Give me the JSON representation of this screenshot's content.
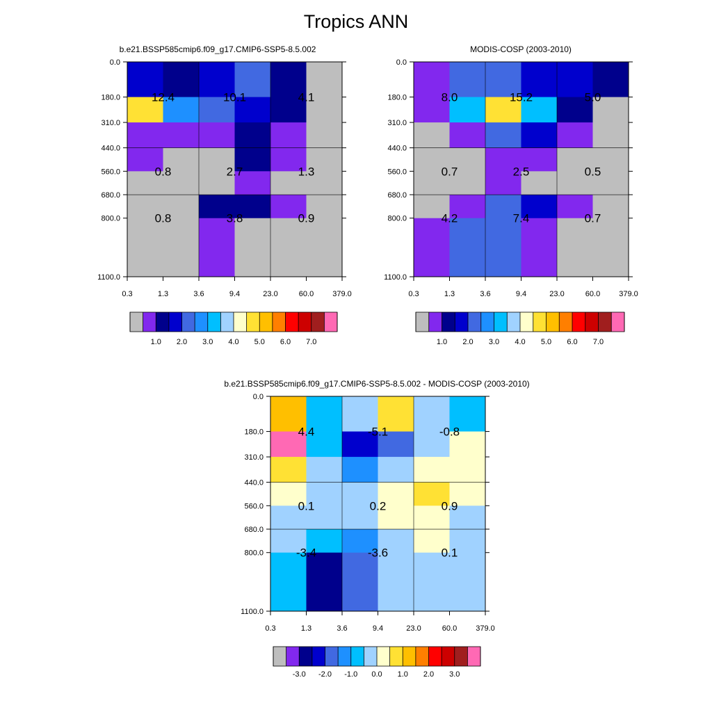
{
  "page_title": "Tropics ANN",
  "palettes": {
    "abs": [
      "#bebebe",
      "#8228ee",
      "#00008c",
      "#0000cd",
      "#4169e1",
      "#1e90ff",
      "#00bfff",
      "#a0d2ff",
      "#ffffcc",
      "#ffe134",
      "#ffbf00",
      "#ff7f00",
      "#ff0000",
      "#cd0000",
      "#a01e1e",
      "#ff69b4"
    ],
    "diff": [
      "#bebebe",
      "#8228ee",
      "#00008c",
      "#0000cd",
      "#4169e1",
      "#1e90ff",
      "#00bfff",
      "#a0d2ff",
      "#ffffcc",
      "#ffe134",
      "#ffbf00",
      "#ff7f00",
      "#ff0000",
      "#cd0000",
      "#a01e1e",
      "#ff69b4"
    ]
  },
  "chart_data": [
    {
      "type": "heatmap",
      "title": "b.e21.BSSP585cmip6.f09_g17.CMIP6-SSP5-8.5.002",
      "x_ticks": [
        "0.3",
        "1.3",
        "3.6",
        "9.4",
        "23.0",
        "60.0",
        "379.0"
      ],
      "y_ticks": [
        "0.0",
        "180.0",
        "310.0",
        "440.0",
        "560.0",
        "680.0",
        "800.0",
        "1100.0"
      ],
      "cell_color_index": [
        [
          3,
          2,
          3,
          4,
          2,
          0
        ],
        [
          9,
          5,
          4,
          3,
          2,
          0
        ],
        [
          1,
          1,
          1,
          2,
          1,
          0
        ],
        [
          1,
          0,
          0,
          2,
          1,
          0
        ],
        [
          0,
          0,
          0,
          1,
          0,
          0
        ],
        [
          0,
          0,
          2,
          2,
          1,
          0
        ],
        [
          0,
          0,
          1,
          0,
          0,
          0
        ]
      ],
      "block_labels": [
        [
          "12.4",
          "10.1",
          "4.1"
        ],
        [
          "0.8",
          "2.7",
          "1.3"
        ],
        [
          "0.8",
          "3.8",
          "0.9"
        ]
      ],
      "colorbar_labels": [
        "1.0",
        "2.0",
        "3.0",
        "4.0",
        "5.0",
        "6.0",
        "7.0"
      ],
      "palette": "abs"
    },
    {
      "type": "heatmap",
      "title": "MODIS-COSP (2003-2010)",
      "x_ticks": [
        "0.3",
        "1.3",
        "3.6",
        "9.4",
        "23.0",
        "60.0",
        "379.0"
      ],
      "y_ticks": [
        "0.0",
        "180.0",
        "310.0",
        "440.0",
        "560.0",
        "680.0",
        "800.0",
        "1100.0"
      ],
      "cell_color_index": [
        [
          1,
          4,
          4,
          3,
          3,
          2
        ],
        [
          1,
          6,
          9,
          6,
          2,
          0
        ],
        [
          0,
          1,
          4,
          3,
          1,
          0
        ],
        [
          0,
          0,
          1,
          1,
          0,
          0
        ],
        [
          0,
          0,
          1,
          0,
          0,
          0
        ],
        [
          0,
          1,
          4,
          3,
          1,
          0
        ],
        [
          1,
          4,
          4,
          1,
          0,
          0
        ]
      ],
      "block_labels": [
        [
          "8.0",
          "15.2",
          "5.0"
        ],
        [
          "0.7",
          "2.5",
          "0.5"
        ],
        [
          "4.2",
          "7.4",
          "0.7"
        ]
      ],
      "colorbar_labels": [
        "1.0",
        "2.0",
        "3.0",
        "4.0",
        "5.0",
        "6.0",
        "7.0"
      ],
      "palette": "abs"
    },
    {
      "type": "heatmap",
      "title": "b.e21.BSSP585cmip6.f09_g17.CMIP6-SSP5-8.5.002 - MODIS-COSP (2003-2010)",
      "x_ticks": [
        "0.3",
        "1.3",
        "3.6",
        "9.4",
        "23.0",
        "60.0",
        "379.0"
      ],
      "y_ticks": [
        "0.0",
        "180.0",
        "310.0",
        "440.0",
        "560.0",
        "680.0",
        "800.0",
        "1100.0"
      ],
      "cell_color_index": [
        [
          10,
          6,
          7,
          9,
          7,
          6
        ],
        [
          15,
          6,
          3,
          4,
          7,
          8
        ],
        [
          9,
          7,
          5,
          7,
          8,
          8
        ],
        [
          8,
          7,
          7,
          8,
          9,
          8
        ],
        [
          7,
          7,
          7,
          8,
          8,
          7
        ],
        [
          7,
          6,
          5,
          7,
          8,
          7
        ],
        [
          6,
          2,
          4,
          7,
          7,
          7
        ]
      ],
      "block_labels": [
        [
          "4.4",
          "-5.1",
          "-0.8"
        ],
        [
          "0.1",
          "0.2",
          "0.9"
        ],
        [
          "-3.4",
          "-3.6",
          "0.1"
        ]
      ],
      "colorbar_labels": [
        "-3.0",
        "-2.0",
        "-1.0",
        "0.0",
        "1.0",
        "2.0",
        "3.0"
      ],
      "palette": "diff"
    }
  ]
}
